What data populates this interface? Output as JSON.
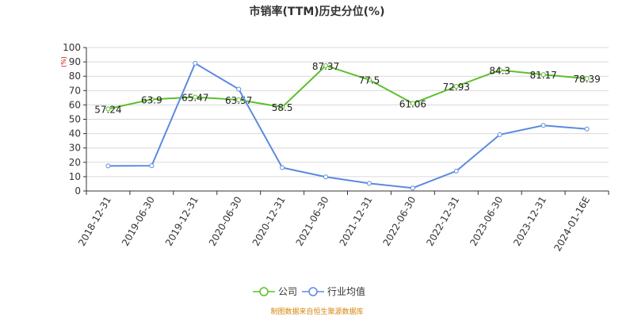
{
  "chart_data": {
    "type": "line",
    "title": "市销率(TTM)历史分位(%)",
    "y_unit": "(%)",
    "categories": [
      "2018-12-31",
      "2019-06-30",
      "2019-12-31",
      "2020-06-30",
      "2020-12-31",
      "2021-06-30",
      "2021-12-31",
      "2022-06-30",
      "2022-12-31",
      "2023-06-30",
      "2023-12-31",
      "2024-01-16E"
    ],
    "ylim": [
      0,
      100
    ],
    "yticks": [
      0,
      10,
      20,
      30,
      40,
      50,
      60,
      70,
      80,
      90,
      100
    ],
    "grid": true,
    "legend_position": "bottom",
    "series": [
      {
        "name": "公司",
        "color": "#5cc02a",
        "show_labels": true,
        "values": [
          57.24,
          63.9,
          65.47,
          63.57,
          58.5,
          87.37,
          77.5,
          61.06,
          72.93,
          84.3,
          81.17,
          78.39
        ]
      },
      {
        "name": "行业均值",
        "color": "#5b8ae0",
        "show_labels": false,
        "values": [
          17.5,
          17.6,
          89.0,
          71.0,
          16.3,
          9.8,
          5.3,
          2.1,
          13.9,
          39.3,
          45.7,
          43.2
        ]
      }
    ]
  },
  "source_text": "制图数据来自恒生聚源数据库"
}
